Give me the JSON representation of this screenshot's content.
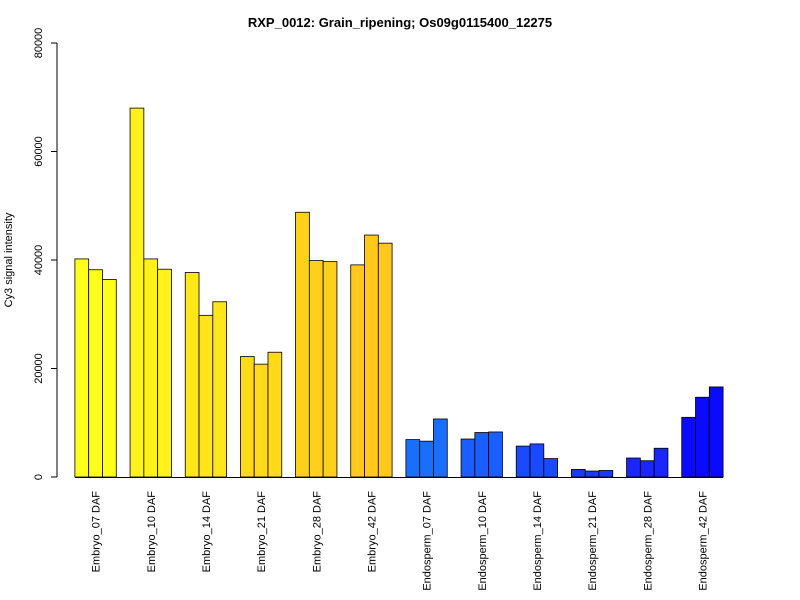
{
  "chart_data": {
    "type": "bar",
    "title": "RXP_0012: Grain_ripening; Os09g0115400_12275",
    "xlabel": "",
    "ylabel": "Cy3 signal intensity",
    "ylim": [
      0,
      80000
    ],
    "yticks": [
      "0",
      "20000",
      "40000",
      "60000",
      "80000"
    ],
    "grid": false,
    "legend": "none",
    "categories": [
      "Embryo_07 DAF",
      "Embryo_10 DAF",
      "Embryo_14 DAF",
      "Embryo_21 DAF",
      "Embryo_28 DAF",
      "Embryo_42 DAF",
      "Endosperm_07 DAF",
      "Endosperm_10 DAF",
      "Endosperm_14 DAF",
      "Endosperm_21 DAF",
      "Endosperm_28 DAF",
      "Endosperm_42 DAF"
    ],
    "colors": [
      "#ffff1a",
      "#fff21a",
      "#ffe61a",
      "#ffd91a",
      "#ffd01a",
      "#ffc81a",
      "#1a6eff",
      "#1a5eff",
      "#1a4aff",
      "#1a38ff",
      "#1a25ff",
      "#0a0aff"
    ],
    "replicates": [
      [
        40200,
        38200,
        36400
      ],
      [
        68000,
        40200,
        38300
      ],
      [
        37700,
        29800,
        32300
      ],
      [
        22200,
        20800,
        23000
      ],
      [
        48800,
        39900,
        39700
      ],
      [
        39100,
        44600,
        43100
      ],
      [
        6900,
        6600,
        10700
      ],
      [
        7000,
        8200,
        8300
      ],
      [
        5700,
        6100,
        3400
      ],
      [
        1400,
        1100,
        1200
      ],
      [
        3500,
        3000,
        5300
      ],
      [
        11000,
        14700,
        16600
      ]
    ]
  }
}
